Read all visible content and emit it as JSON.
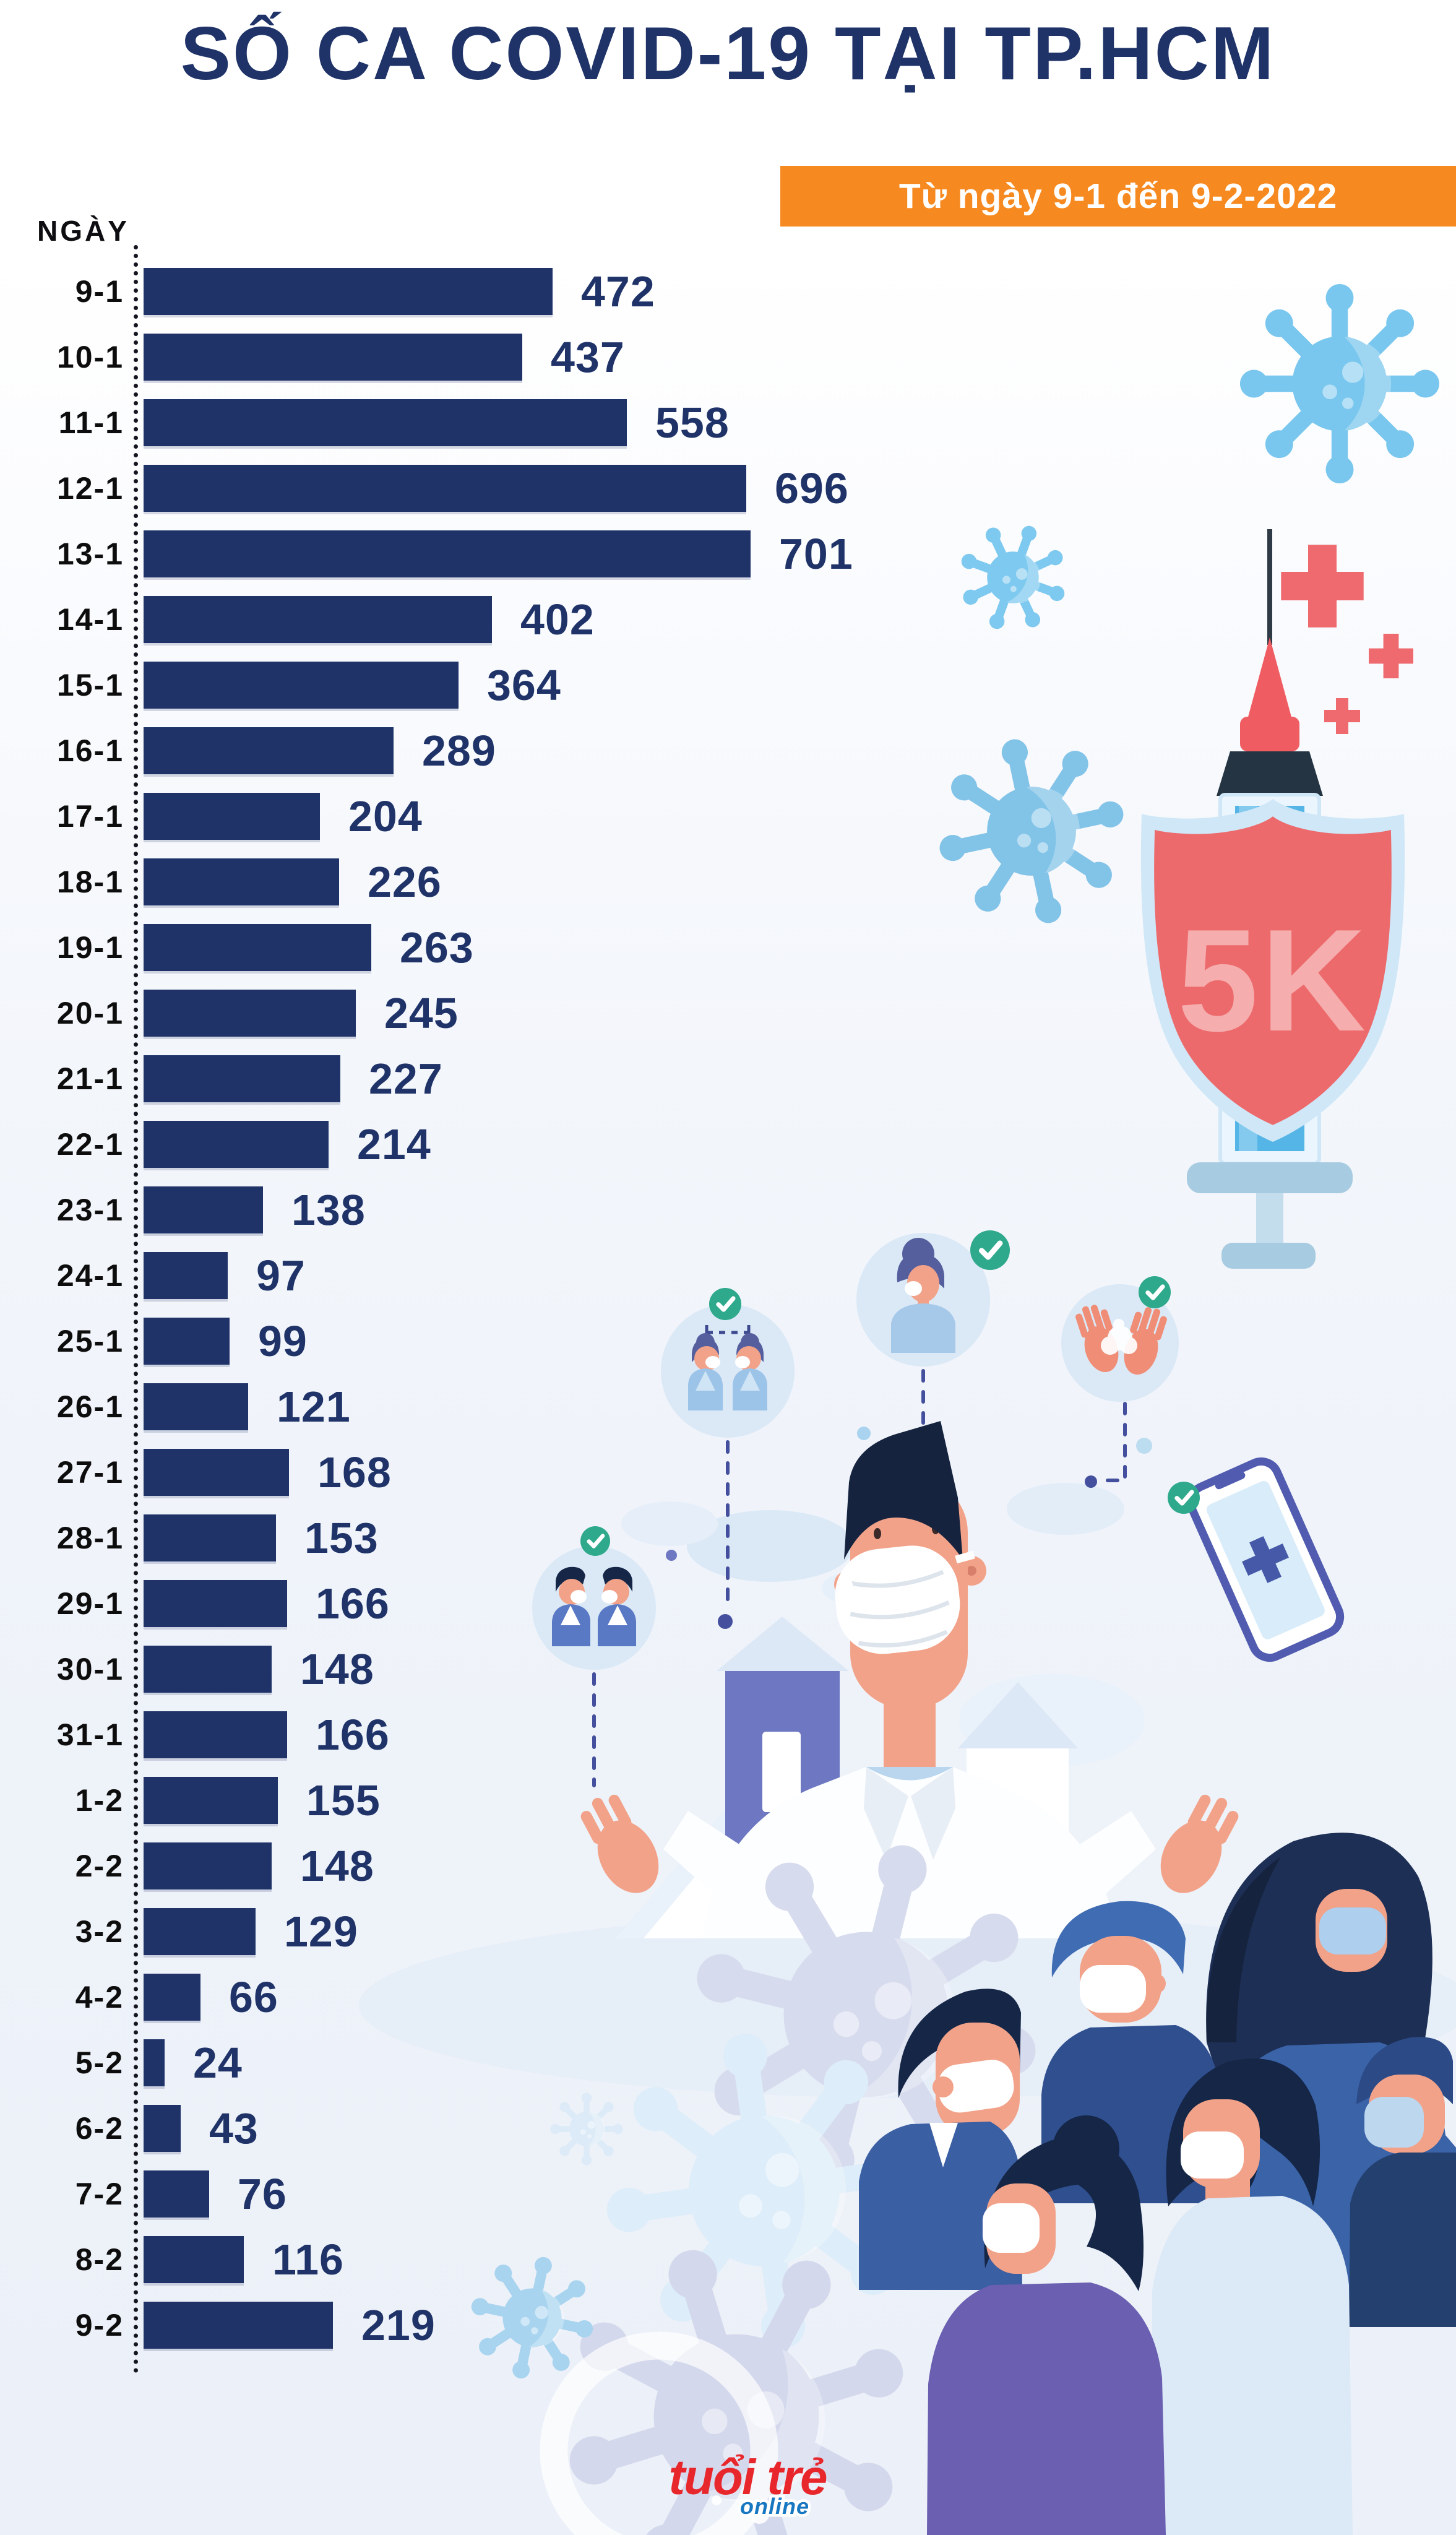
{
  "header": {
    "title": "SỐ CA COVID-19 TẠI TP.HCM",
    "subtitle": "Từ ngày 9-1 đến 9-2-2022"
  },
  "chart_data": {
    "type": "bar",
    "orientation": "horizontal",
    "title": "SỐ CA COVID-19 TẠI TP.HCM",
    "subtitle": "Từ ngày 9-1 đến 9-2-2022",
    "axis_label": "NGÀY",
    "categories": [
      "9-1",
      "10-1",
      "11-1",
      "12-1",
      "13-1",
      "14-1",
      "15-1",
      "16-1",
      "17-1",
      "18-1",
      "19-1",
      "20-1",
      "21-1",
      "22-1",
      "23-1",
      "24-1",
      "25-1",
      "26-1",
      "27-1",
      "28-1",
      "29-1",
      "30-1",
      "31-1",
      "1-2",
      "2-2",
      "3-2",
      "4-2",
      "5-2",
      "6-2",
      "7-2",
      "8-2",
      "9-2"
    ],
    "values": [
      472,
      437,
      558,
      696,
      701,
      402,
      364,
      289,
      204,
      226,
      263,
      245,
      227,
      214,
      138,
      97,
      99,
      121,
      168,
      153,
      166,
      148,
      166,
      155,
      148,
      129,
      66,
      24,
      43,
      76,
      116,
      219
    ],
    "xlim": [
      0,
      701
    ],
    "grid": false,
    "value_labels_shown": true,
    "bar_color": "#1f3368",
    "value_label_color": "#1f3368",
    "category_label_color": "#0d0d0d"
  },
  "illustrations": {
    "shield_text": "5K",
    "icon_names": [
      "virus-icon",
      "red-cross-icon",
      "syringe-icon",
      "shield-5k-icon",
      "check-icon",
      "distancing-icon",
      "mask-woman-icon",
      "hand-washing-icon",
      "masked-men-icon",
      "health-app-phone-icon",
      "doctor-mask-icon",
      "masked-crowd-icon"
    ]
  },
  "branding": {
    "logo_main": "tuổi trẻ",
    "logo_sub": "online"
  },
  "colors": {
    "navy": "#1f3368",
    "orange": "#f6891f",
    "virus_blue": "#7ec9ef",
    "virus_lavender": "#d6daee",
    "shield_red": "#ed6a6c",
    "check_green": "#2fa98c",
    "skin": "#f2a288",
    "periwinkle": "#6d77c2"
  }
}
